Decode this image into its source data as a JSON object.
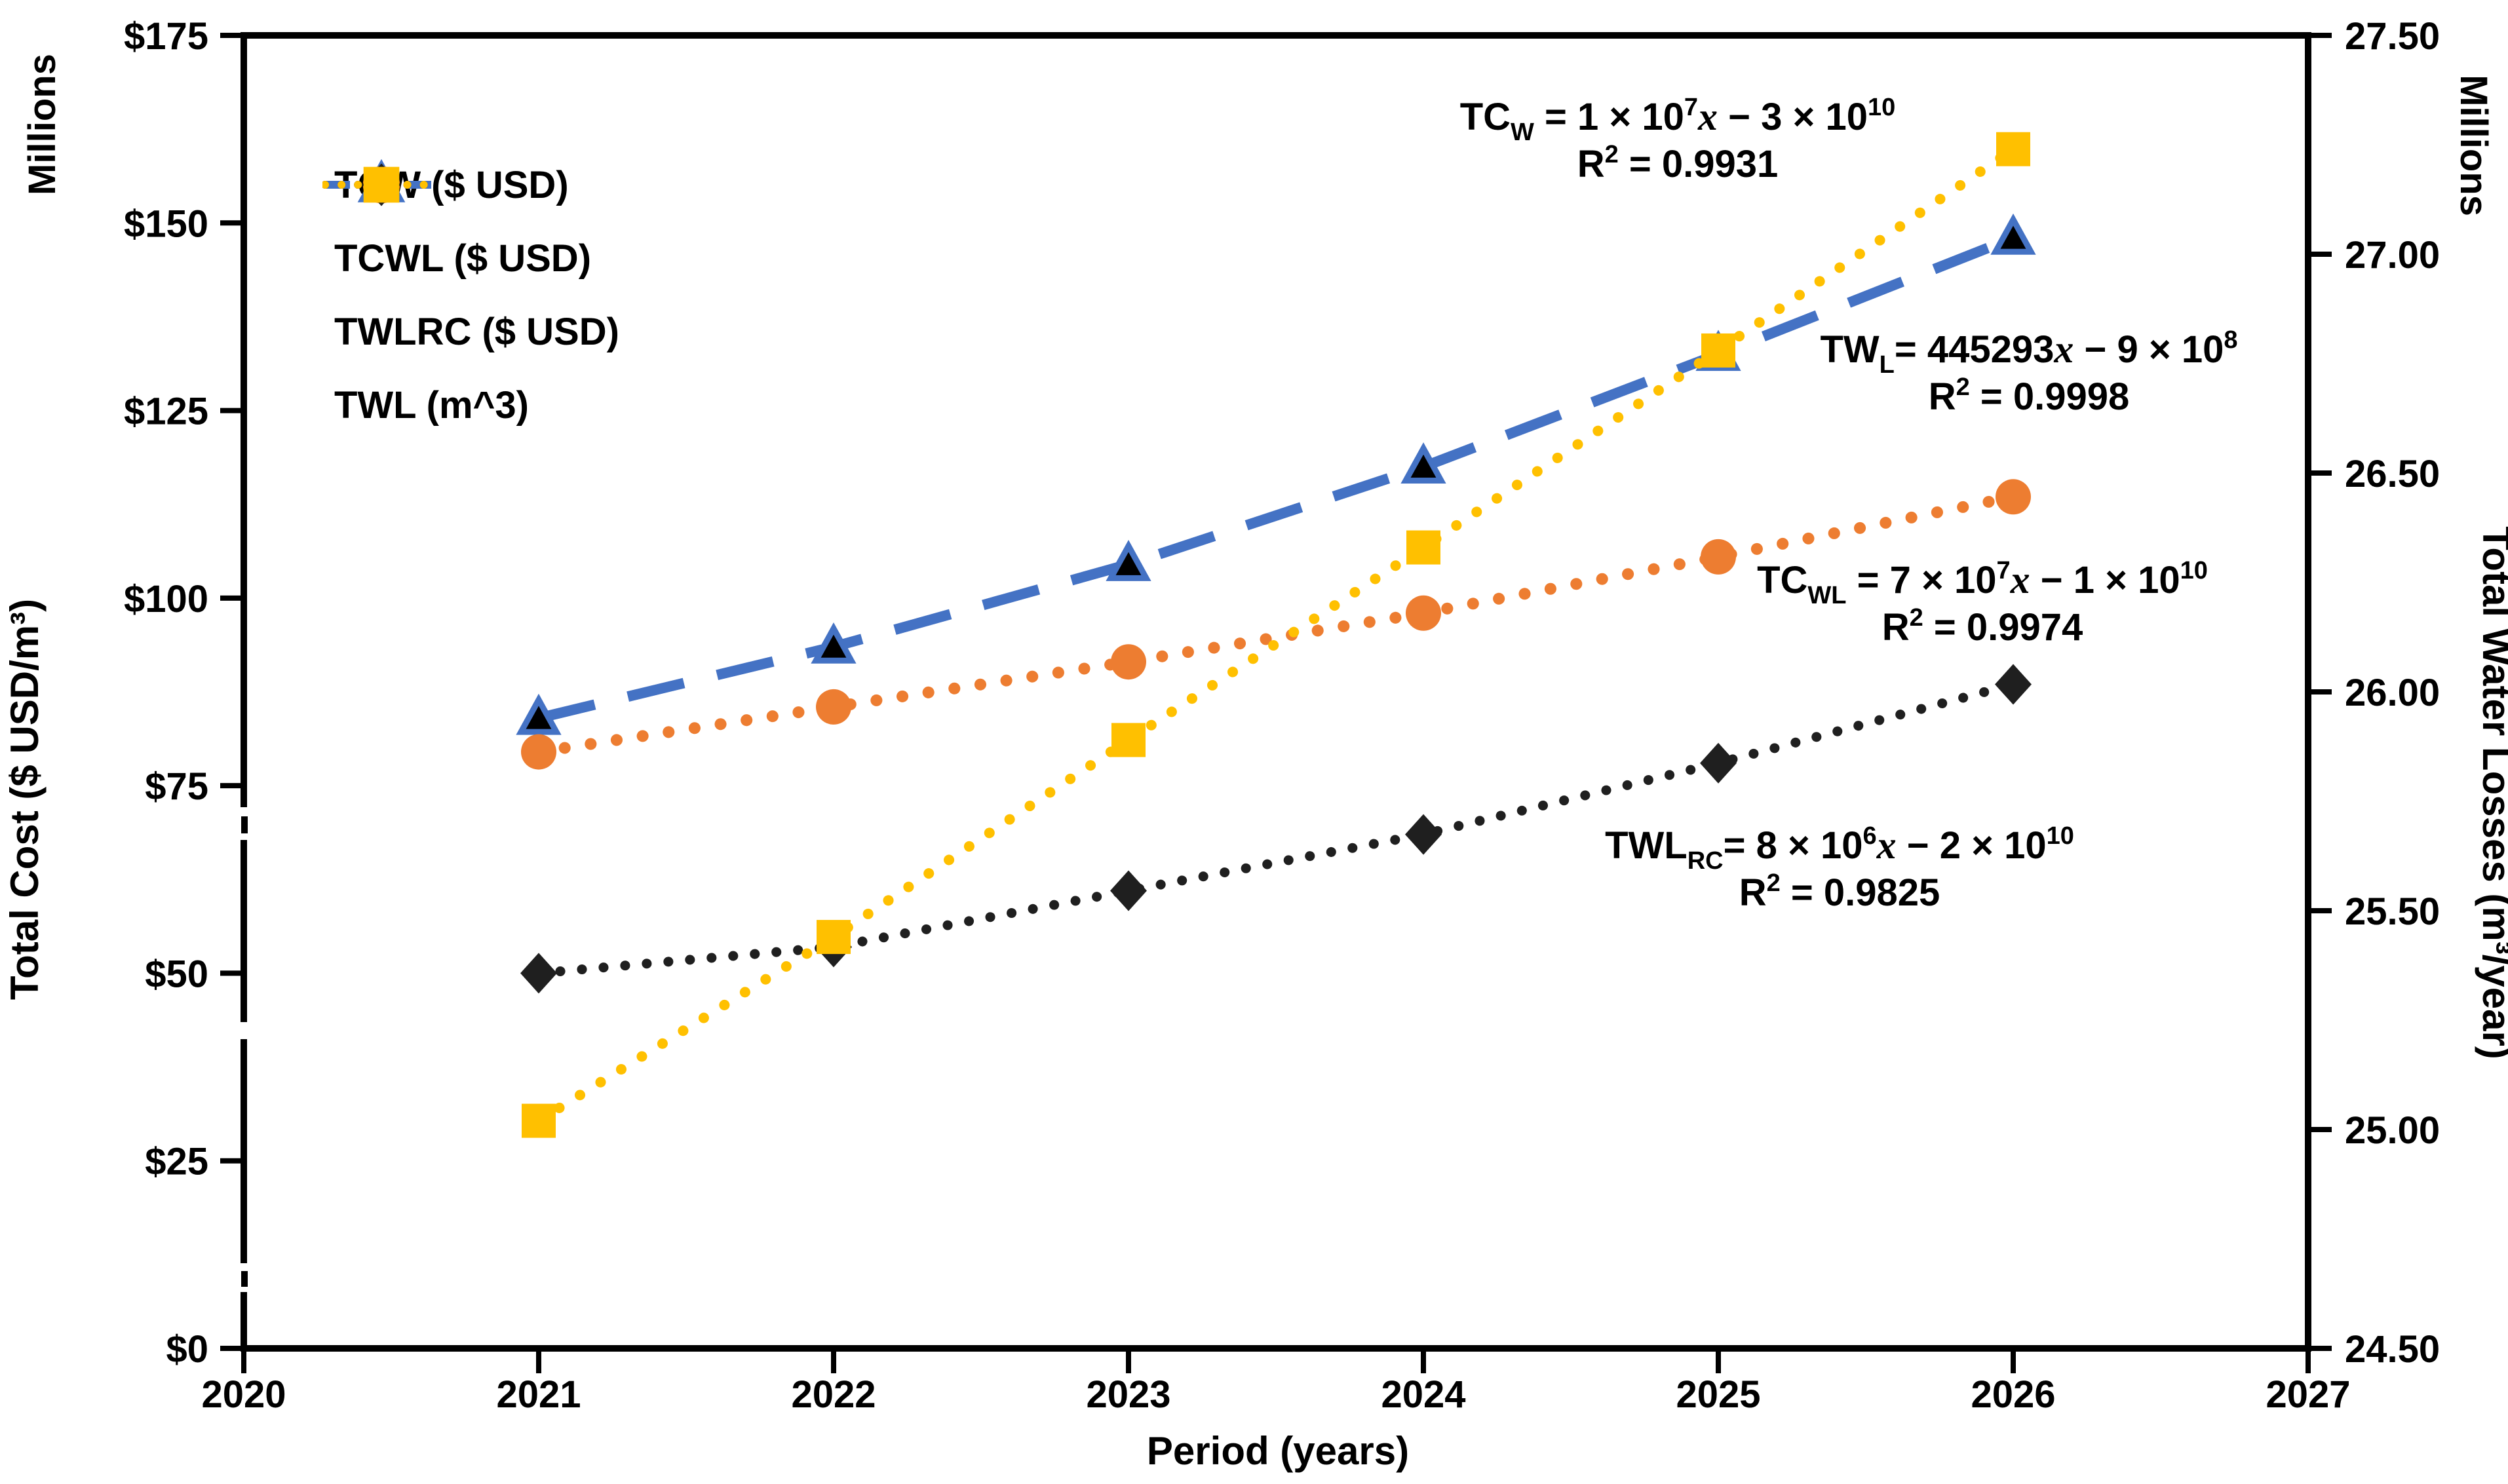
{
  "chart_data": {
    "type": "line",
    "x": [
      2021,
      2022,
      2023,
      2024,
      2025,
      2026
    ],
    "x_axis": {
      "title": "Period (years)",
      "range": [
        2020,
        2027
      ],
      "ticks": [
        "2020",
        "2021",
        "2022",
        "2023",
        "2024",
        "2025",
        "2026",
        "2027"
      ]
    },
    "y_left_axis": {
      "units": "Millions",
      "title": "Total Cost ($ USD/m³)",
      "range": [
        0,
        175
      ],
      "ticks": [
        "$175",
        "$150",
        "$125",
        "$100",
        "$75",
        "$50",
        "$25",
        "$0"
      ]
    },
    "y_right_axis": {
      "units": "Millions",
      "title": "Total Water Losses (m³/year)",
      "range": [
        24.5,
        27.5
      ],
      "ticks": [
        "27.50",
        "27.00",
        "26.50",
        "26.00",
        "25.50",
        "25.00",
        "24.50"
      ]
    },
    "grid": "off",
    "legend_position": "upper-left-inside",
    "series": [
      {
        "name": "TCW",
        "label": "TCW ($ USD)",
        "axis": "left",
        "line_style": "dash",
        "line_color": "#4472C4",
        "marker": "triangle",
        "marker_fill": "#000000",
        "marker_stroke": "#4472C4",
        "values": [
          84,
          93.5,
          104.5,
          117.5,
          132.5,
          148
        ]
      },
      {
        "name": "TCWL",
        "label": "TCWL ($ USD)",
        "axis": "left",
        "line_style": "dot",
        "line_color": "#ED7D31",
        "marker": "circle",
        "marker_fill": "#ED7D31",
        "marker_stroke": "none",
        "values": [
          79.5,
          85.5,
          91.5,
          98,
          105.5,
          113.5
        ]
      },
      {
        "name": "TWLRC",
        "label": "TWLRC ($ USD)",
        "axis": "left",
        "line_style": "dot",
        "line_color": "#1F1F1F",
        "marker": "diamond",
        "marker_fill": "#1F1F1F",
        "marker_stroke": "none",
        "values": [
          50,
          53.5,
          61,
          68.5,
          78,
          88.5
        ]
      },
      {
        "name": "TWL",
        "label": "TWL (m^3)",
        "axis": "right",
        "line_style": "dot",
        "line_color": "#FFC000",
        "marker": "square",
        "marker_fill": "#FFC000",
        "marker_stroke": "none",
        "values": [
          25.02,
          25.44,
          25.89,
          26.33,
          26.78,
          27.24
        ]
      }
    ],
    "equations": [
      {
        "id": "tcw",
        "text": "TC_W = 1 × 10^7 x − 3 × 10^10",
        "r2_text": "R² = 0.9931",
        "segments": [
          {
            "t": "TC"
          },
          {
            "t": "W",
            "s": "sub"
          },
          {
            "t": " = 1 × 10"
          },
          {
            "t": "7",
            "s": "sup"
          },
          {
            "t": "x",
            "s": "it"
          },
          {
            "t": " − 3 × 10"
          },
          {
            "t": "10",
            "s": "sup"
          }
        ],
        "r2_segments": [
          {
            "t": "R"
          },
          {
            "t": "2",
            "s": "sup"
          },
          {
            "t": " = 0.9931"
          }
        ]
      },
      {
        "id": "twl",
        "text": "TW_L = 445293 x − 9 × 10^8",
        "r2_text": "R² = 0.9998",
        "segments": [
          {
            "t": "TW"
          },
          {
            "t": "L",
            "s": "sub"
          },
          {
            "t": "= 445293"
          },
          {
            "t": "x",
            "s": "it"
          },
          {
            "t": " − 9 × 10"
          },
          {
            "t": "8",
            "s": "sup"
          }
        ],
        "r2_segments": [
          {
            "t": "R"
          },
          {
            "t": "2",
            "s": "sup"
          },
          {
            "t": " = 0.9998"
          }
        ]
      },
      {
        "id": "tcwl",
        "text": "TC_WL = 7 × 10^7 x − 1 × 10^10",
        "r2_text": "R² = 0.9974",
        "segments": [
          {
            "t": "TC"
          },
          {
            "t": "WL",
            "s": "sub"
          },
          {
            "t": " = 7 × 10"
          },
          {
            "t": "7",
            "s": "sup"
          },
          {
            "t": "x",
            "s": "it"
          },
          {
            "t": " − 1 × 10"
          },
          {
            "t": "10",
            "s": "sup"
          }
        ],
        "r2_segments": [
          {
            "t": "R"
          },
          {
            "t": "2",
            "s": "sup"
          },
          {
            "t": " = 0.9974"
          }
        ]
      },
      {
        "id": "twlrc",
        "text": "TWL_RC = 8 × 10^6 x − 2 × 10^10",
        "r2_text": "R² = 0.9825",
        "segments": [
          {
            "t": "TWL"
          },
          {
            "t": "RC",
            "s": "sub"
          },
          {
            "t": "= 8 × 10"
          },
          {
            "t": "6",
            "s": "sup"
          },
          {
            "t": "x",
            "s": "it"
          },
          {
            "t": " − 2 × 10"
          },
          {
            "t": "10",
            "s": "sup"
          }
        ],
        "r2_segments": [
          {
            "t": "R"
          },
          {
            "t": "2",
            "s": "sup"
          },
          {
            "t": " = 0.9825"
          }
        ]
      }
    ],
    "colors": {
      "frame": "#000000",
      "tcw_blue": "#4472C4",
      "tcwl_orange": "#ED7D31",
      "twlrc_black": "#1F1F1F",
      "twl_yellow": "#FFC000"
    }
  }
}
